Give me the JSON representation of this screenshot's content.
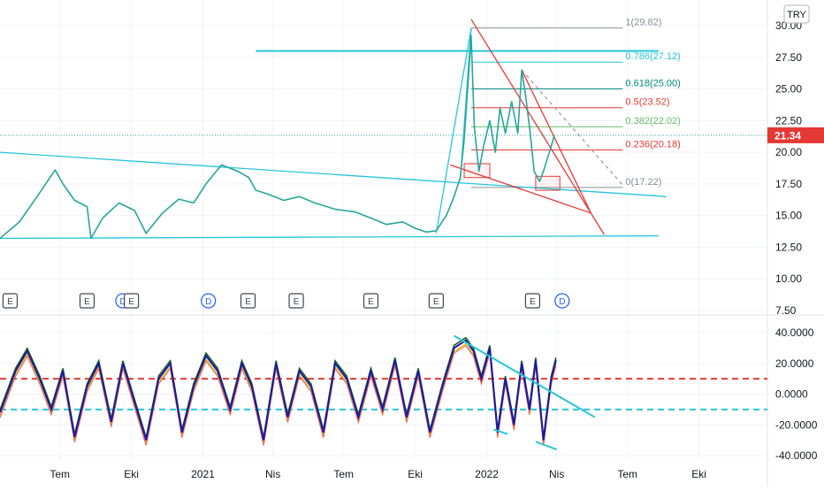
{
  "currency": "TRY",
  "colors": {
    "price": "#26a69a",
    "cyan": "#26c6da",
    "red": "#e53935",
    "fib_gray": "#8a8f99",
    "dashed_gray": "#9e9e9e",
    "osc_green": "#1b5e20",
    "osc_blue": "#1a1aa6",
    "osc_yellow": "#e6c229",
    "osc_red": "#ef5350",
    "price_label_bg": "#e53935",
    "grid": "#f0f3fa"
  },
  "last_price": {
    "value": 21.34,
    "label": "21.34"
  },
  "events": [
    {
      "type": "E",
      "x": "2020-04-28"
    },
    {
      "type": "E",
      "x": "2020-08-05"
    },
    {
      "type": "D",
      "x": "2020-09-20"
    },
    {
      "type": "E",
      "x": "2020-10-01"
    },
    {
      "type": "D",
      "x": "2021-01-08"
    },
    {
      "type": "E",
      "x": "2021-02-28"
    },
    {
      "type": "E",
      "x": "2021-05-01"
    },
    {
      "type": "E",
      "x": "2021-08-05"
    },
    {
      "type": "E",
      "x": "2021-10-28"
    },
    {
      "type": "E",
      "x": "2022-03-01"
    },
    {
      "type": "D",
      "x": "2022-04-08"
    }
  ],
  "chart_data": [
    {
      "type": "line",
      "name": "price",
      "ylim": [
        7.5,
        30
      ],
      "y_ticks": [
        "30.00",
        "27.50",
        "25.00",
        "22.50",
        "20.00",
        "17.50",
        "15.00",
        "12.50",
        "10.00",
        "7.50"
      ],
      "x_ticks": [
        "Tem",
        "Eki",
        "2021",
        "Nis",
        "Tem",
        "Eki",
        "2022",
        "Nis",
        "Tem",
        "Eki"
      ],
      "x_tick_dates": [
        "2020-07-01",
        "2020-10-01",
        "2021-01-01",
        "2021-04-01",
        "2021-07-01",
        "2021-10-01",
        "2022-01-01",
        "2022-04-01",
        "2022-07-01",
        "2022-10-01"
      ],
      "x_range": [
        "2020-04-15",
        "2022-12-28"
      ],
      "series": [
        {
          "x": [
            "2020-04-15",
            "2020-05-10",
            "2020-06-05",
            "2020-06-25",
            "2020-07-05",
            "2020-07-20",
            "2020-08-05",
            "2020-08-10",
            "2020-08-25",
            "2020-09-15",
            "2020-10-05",
            "2020-10-20",
            "2020-11-10",
            "2020-12-01",
            "2020-12-20",
            "2021-01-05",
            "2021-01-25",
            "2021-02-15",
            "2021-03-01",
            "2021-03-10",
            "2021-03-25",
            "2021-04-15",
            "2021-05-05",
            "2021-05-25",
            "2021-06-20",
            "2021-07-15",
            "2021-08-05",
            "2021-08-25",
            "2021-09-15",
            "2021-10-01",
            "2021-10-15",
            "2021-10-28",
            "2021-11-10",
            "2021-11-20",
            "2021-11-28",
            "2021-12-03",
            "2021-12-08",
            "2021-12-12",
            "2021-12-16",
            "2021-12-22",
            "2021-12-28",
            "2022-01-05",
            "2022-01-12",
            "2022-01-18",
            "2022-01-25",
            "2022-02-02",
            "2022-02-10",
            "2022-02-15",
            "2022-02-20",
            "2022-02-25",
            "2022-03-03",
            "2022-03-10",
            "2022-03-15",
            "2022-03-20",
            "2022-03-25",
            "2022-03-29"
          ],
          "values": [
            13.2,
            14.5,
            16.8,
            18.6,
            17.5,
            16.2,
            15.7,
            13.2,
            14.8,
            16.0,
            15.4,
            13.6,
            15.2,
            16.3,
            16.0,
            17.5,
            19.0,
            18.5,
            18.0,
            17.0,
            16.7,
            16.2,
            16.5,
            16.0,
            15.5,
            15.3,
            14.8,
            14.3,
            14.5,
            14.0,
            13.7,
            13.8,
            15.0,
            16.5,
            18.0,
            21.0,
            25.5,
            29.2,
            22.0,
            18.5,
            20.5,
            22.5,
            20.0,
            23.5,
            21.5,
            24.0,
            21.5,
            26.5,
            24.5,
            22.0,
            18.5,
            17.7,
            18.5,
            19.5,
            20.5,
            21.34
          ]
        }
      ],
      "fib_levels": [
        {
          "ratio": "1",
          "value": 29.82,
          "label": "1(29.82)",
          "color": "#8a8f99"
        },
        {
          "ratio": "0.786",
          "value": 27.12,
          "label": "0.786(27.12)",
          "color": "#26c6da"
        },
        {
          "ratio": "0.618",
          "value": 25.0,
          "label": "0.618(25.00)",
          "color": "#00897b"
        },
        {
          "ratio": "0.5",
          "value": 23.52,
          "label": "0.5(23.52)",
          "color": "#e53935"
        },
        {
          "ratio": "0.382",
          "value": 22.02,
          "label": "0.382(22.02)",
          "color": "#66bb6a"
        },
        {
          "ratio": "0.236",
          "value": 20.18,
          "label": "0.236(20.18)",
          "color": "#e53935"
        },
        {
          "ratio": "0",
          "value": 17.22,
          "label": "0(17.22)",
          "color": "#8a8f99"
        }
      ],
      "fib_range": {
        "x1": "2021-12-12",
        "x2": "2022-06-25"
      },
      "trendlines": [
        {
          "color": "#26c6da",
          "points": [
            {
              "x": "2020-04-15",
              "y": 20.0
            },
            {
              "x": "2022-08-20",
              "y": 16.5
            }
          ]
        },
        {
          "color": "#26c6da",
          "points": [
            {
              "x": "2020-04-15",
              "y": 13.2
            },
            {
              "x": "2022-08-10",
              "y": 13.4
            }
          ]
        },
        {
          "color": "#26c6da",
          "width": 2,
          "points": [
            {
              "x": "2021-03-10",
              "y": 28.0
            },
            {
              "x": "2022-08-10",
              "y": 28.0
            }
          ]
        },
        {
          "color": "#26c6da",
          "points": [
            {
              "x": "2021-10-28",
              "y": 13.6
            },
            {
              "x": "2021-12-12",
              "y": 29.8
            }
          ]
        },
        {
          "color": "#26c6da",
          "points": [
            {
              "x": "2021-11-28",
              "y": 17.8
            },
            {
              "x": "2021-12-12",
              "y": 29.8
            }
          ]
        },
        {
          "color": "#e53935",
          "points": [
            {
              "x": "2021-12-12",
              "y": 30.5
            },
            {
              "x": "2022-06-01",
              "y": 13.5
            }
          ]
        },
        {
          "color": "#e53935",
          "points": [
            {
              "x": "2022-02-15",
              "y": 26.5
            },
            {
              "x": "2022-05-15",
              "y": 15.2
            }
          ]
        },
        {
          "color": "#e53935",
          "points": [
            {
              "x": "2021-11-15",
              "y": 19.0
            },
            {
              "x": "2022-05-15",
              "y": 15.2
            }
          ]
        },
        {
          "color": "#9e9e9e",
          "dashed": true,
          "points": [
            {
              "x": "2022-02-15",
              "y": 26.5
            },
            {
              "x": "2022-06-25",
              "y": 17.4
            }
          ]
        }
      ],
      "boxes": [
        {
          "color": "#e53935",
          "x1": "2021-12-03",
          "x2": "2022-01-05",
          "y1": 18.0,
          "y2": 19.1
        },
        {
          "color": "#e53935",
          "x1": "2022-03-05",
          "x2": "2022-04-05",
          "y1": 17.0,
          "y2": 18.1
        }
      ]
    },
    {
      "type": "line",
      "name": "oscillator",
      "ylim": [
        -40,
        40
      ],
      "y_ticks": [
        "40.0000",
        "20.0000",
        "0.0000",
        "-20.0000",
        "-40.0000"
      ],
      "levels": [
        {
          "value": 10,
          "color": "#e53935",
          "dashed": true
        },
        {
          "value": -10,
          "color": "#26c6da",
          "dashed": true
        }
      ],
      "series": [
        {
          "x": [
            "2020-04-15",
            "2020-05-05",
            "2020-05-20",
            "2020-06-05",
            "2020-06-20",
            "2020-07-05",
            "2020-07-20",
            "2020-08-05",
            "2020-08-20",
            "2020-09-05",
            "2020-09-20",
            "2020-10-05",
            "2020-10-20",
            "2020-11-05",
            "2020-11-20",
            "2020-12-05",
            "2020-12-20",
            "2021-01-05",
            "2021-01-20",
            "2021-02-05",
            "2021-02-20",
            "2021-03-05",
            "2021-03-20",
            "2021-04-05",
            "2021-04-20",
            "2021-05-05",
            "2021-05-20",
            "2021-06-05",
            "2021-06-20",
            "2021-07-05",
            "2021-07-20",
            "2021-08-05",
            "2021-08-20",
            "2021-09-05",
            "2021-09-20",
            "2021-10-05",
            "2021-10-20",
            "2021-11-05",
            "2021-11-20",
            "2021-12-05",
            "2021-12-15",
            "2021-12-25",
            "2022-01-05",
            "2022-01-15",
            "2022-01-25",
            "2022-02-05",
            "2022-02-15",
            "2022-02-25",
            "2022-03-05",
            "2022-03-15",
            "2022-03-25",
            "2022-03-31"
          ],
          "values": [
            -12,
            15,
            28,
            10,
            -10,
            15,
            -28,
            5,
            20,
            -18,
            20,
            -5,
            -30,
            10,
            20,
            -25,
            5,
            25,
            15,
            -10,
            20,
            5,
            -30,
            20,
            -15,
            15,
            5,
            -25,
            20,
            10,
            -15,
            15,
            -10,
            22,
            -15,
            15,
            -25,
            5,
            30,
            35,
            28,
            10,
            30,
            -25,
            10,
            -20,
            20,
            -10,
            22,
            -30,
            10,
            22
          ]
        }
      ]
    }
  ]
}
